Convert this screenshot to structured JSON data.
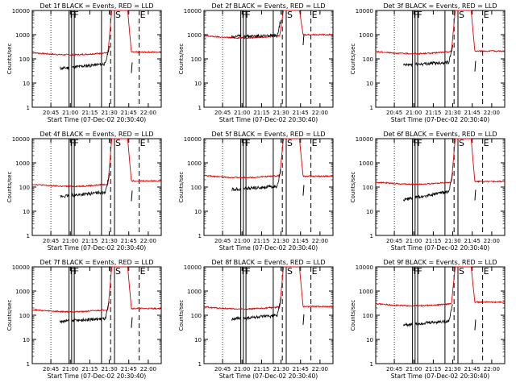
{
  "colors": {
    "events": "#000000",
    "lld": "#dd0000",
    "axes": "#000000"
  },
  "common": {
    "xlabel": "Start Time (07-Dec-02 20:30:40)",
    "ylabel": "Counts/sec",
    "x_ticks": [
      "20:45",
      "21:00",
      "21:15",
      "21:30",
      "21:45",
      "22:00"
    ],
    "y_ticks": [
      "1",
      "10",
      "100",
      "1000",
      "10000"
    ],
    "marker_labels": [
      "F",
      "F",
      "S",
      "E"
    ]
  },
  "chart_data": [
    {
      "type": "line",
      "title": "Det 1f BLACK = Events, RED = LLD",
      "ylim": [
        1,
        10000
      ],
      "series": [
        {
          "values": {
            "lld_base": 180,
            "lld_end": 190,
            "lld_peak": 12000,
            "events_start": 40,
            "events_end": 65
          }
        }
      ]
    },
    {
      "type": "line",
      "title": "Det 2f BLACK = Events, RED = LLD",
      "ylim": [
        1,
        10000
      ],
      "series": [
        {
          "values": {
            "lld_base": 900,
            "lld_end": 1000,
            "lld_peak": 12000,
            "events_start": 860,
            "events_end": 920
          }
        }
      ]
    },
    {
      "type": "line",
      "title": "Det 3f BLACK = Events, RED = LLD",
      "ylim": [
        1,
        10000
      ],
      "series": [
        {
          "values": {
            "lld_base": 200,
            "lld_end": 210,
            "lld_peak": 12000,
            "events_start": 55,
            "events_end": 75
          }
        }
      ]
    },
    {
      "type": "line",
      "title": "Det 4f BLACK = Events, RED = LLD",
      "ylim": [
        1,
        10000
      ],
      "series": [
        {
          "values": {
            "lld_base": 130,
            "lld_end": 180,
            "lld_peak": 12000,
            "events_start": 40,
            "events_end": 65
          }
        }
      ]
    },
    {
      "type": "line",
      "title": "Det 5f BLACK = Events, RED = LLD",
      "ylim": [
        1,
        10000
      ],
      "series": [
        {
          "values": {
            "lld_base": 300,
            "lld_end": 280,
            "lld_peak": 12000,
            "events_start": 80,
            "events_end": 110
          }
        }
      ]
    },
    {
      "type": "line",
      "title": "Det 6f BLACK = Events, RED = LLD",
      "ylim": [
        1,
        10000
      ],
      "series": [
        {
          "values": {
            "lld_base": 160,
            "lld_end": 170,
            "lld_peak": 12000,
            "events_start": 30,
            "events_end": 70
          }
        }
      ]
    },
    {
      "type": "line",
      "title": "Det 7f BLACK = Events, RED = LLD",
      "ylim": [
        1,
        10000
      ],
      "series": [
        {
          "values": {
            "lld_base": 170,
            "lld_end": 190,
            "lld_peak": 12000,
            "events_start": 55,
            "events_end": 75
          }
        }
      ]
    },
    {
      "type": "line",
      "title": "Det 8f BLACK = Events, RED = LLD",
      "ylim": [
        1,
        10000
      ],
      "series": [
        {
          "values": {
            "lld_base": 220,
            "lld_end": 230,
            "lld_peak": 12000,
            "events_start": 70,
            "events_end": 100
          }
        }
      ]
    },
    {
      "type": "line",
      "title": "Det 9f BLACK = Events, RED = LLD",
      "ylim": [
        1,
        10000
      ],
      "series": [
        {
          "values": {
            "lld_base": 300,
            "lld_end": 350,
            "lld_peak": 12000,
            "events_start": 40,
            "events_end": 60
          }
        }
      ]
    }
  ]
}
